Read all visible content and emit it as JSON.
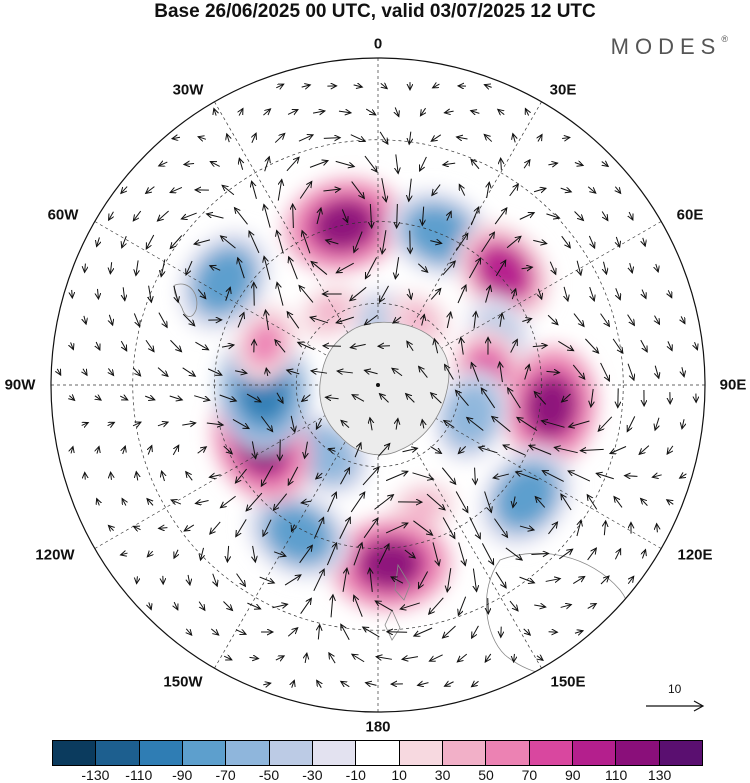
{
  "title": "Base 26/06/2025 00 UTC, valid 03/07/2025 12 UTC",
  "brand": "MODES",
  "brand_mark": "®",
  "longitude_labels": {
    "n0": "0",
    "e30": "30E",
    "e60": "60E",
    "e90": "90E",
    "e120": "120E",
    "e150": "150E",
    "n180": "180",
    "w150": "150W",
    "w120": "120W",
    "w90": "90W",
    "w60": "60W",
    "w30": "30W"
  },
  "wind_scale": {
    "value": "10"
  },
  "colorbar": {
    "colors": [
      "#0b3b5e",
      "#1d5f8f",
      "#2f7db4",
      "#5d9fcd",
      "#8fb6dc",
      "#bccbe5",
      "#e3e2f0",
      "#ffffff",
      "#f7d9e0",
      "#f2b0c8",
      "#ec82b3",
      "#d9479f",
      "#b41f8d",
      "#8a0f7a",
      "#5a0f70"
    ],
    "ticks": [
      "-130",
      "-110",
      "-90",
      "-70",
      "-50",
      "-30",
      "-10",
      "10",
      "30",
      "50",
      "70",
      "90",
      "110",
      "130"
    ]
  },
  "anomaly_centers": [
    {
      "lon": -12,
      "colat": 30,
      "value": 110
    },
    {
      "lon": 22,
      "colat": 30,
      "value": -90
    },
    {
      "lon": 48,
      "colat": 31,
      "value": 90
    },
    {
      "lon": 67,
      "colat": 24,
      "value": -50
    },
    {
      "lon": 85,
      "colat": 20,
      "value": 70
    },
    {
      "lon": 97,
      "colat": 32,
      "value": 110
    },
    {
      "lon": 108,
      "colat": 18,
      "value": -70
    },
    {
      "lon": 127,
      "colat": 34,
      "value": -90
    },
    {
      "lon": 160,
      "colat": 24,
      "value": 30
    },
    {
      "lon": 176,
      "colat": 33,
      "value": 110
    },
    {
      "lon": -152,
      "colat": 31,
      "value": -90
    },
    {
      "lon": -143,
      "colat": 16,
      "value": -70
    },
    {
      "lon": -117,
      "colat": 24,
      "value": 110
    },
    {
      "lon": -93,
      "colat": 21,
      "value": -110
    },
    {
      "lon": -70,
      "colat": 22,
      "value": 50
    },
    {
      "lon": -56,
      "colat": 34,
      "value": -90
    },
    {
      "lon": 5,
      "colat": 12,
      "value": -50
    },
    {
      "lon": 32,
      "colat": 14,
      "value": 30
    },
    {
      "lon": -33,
      "colat": 16,
      "value": 30
    }
  ]
}
